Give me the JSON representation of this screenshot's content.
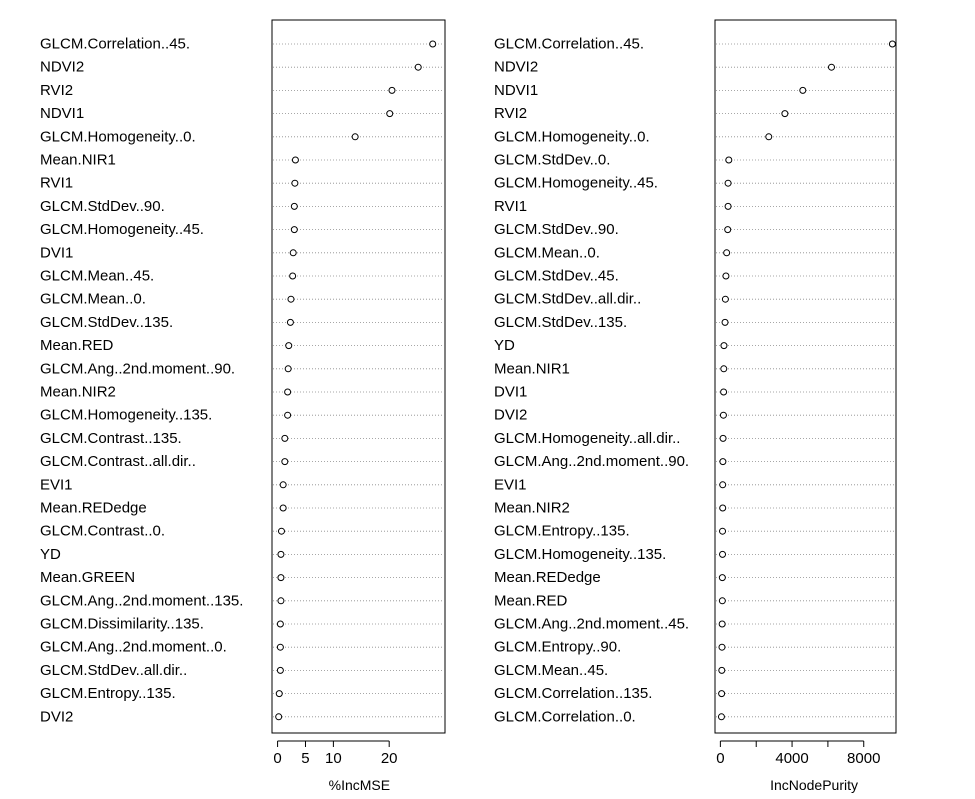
{
  "chart_data": [
    {
      "type": "scatter",
      "subtype": "dotchart",
      "title": "",
      "xlabel": "%IncMSE",
      "ylabel": "",
      "xlim": [
        -1,
        30
      ],
      "xticks": [
        0,
        5,
        10,
        20
      ],
      "grid": "dotted horizontal guide per variable",
      "series": [
        {
          "categories": [
            "GLCM.Correlation..45.",
            "NDVI2",
            "RVI2",
            "NDVI1",
            "GLCM.Homogeneity..0.",
            "Mean.NIR1",
            "RVI1",
            "GLCM.StdDev..90.",
            "GLCM.Homogeneity..45.",
            "DVI1",
            "GLCM.Mean..45.",
            "GLCM.Mean..0.",
            "GLCM.StdDev..135.",
            "Mean.RED",
            "GLCM.Ang..2nd.moment..90.",
            "Mean.NIR2",
            "GLCM.Homogeneity..135.",
            "GLCM.Contrast..135.",
            "GLCM.Contrast..all.dir..",
            "EVI1",
            "Mean.REDedge",
            "GLCM.Contrast..0.",
            "YD",
            "Mean.GREEN",
            "GLCM.Ang..2nd.moment..135.",
            "GLCM.Dissimilarity..135.",
            "GLCM.Ang..2nd.moment..0.",
            "GLCM.StdDev..all.dir..",
            "GLCM.Entropy..135.",
            "DVI2"
          ],
          "values": [
            27.8,
            25.2,
            20.5,
            20.1,
            13.9,
            3.2,
            3.1,
            3.0,
            3.0,
            2.8,
            2.7,
            2.4,
            2.3,
            2.0,
            1.9,
            1.8,
            1.8,
            1.3,
            1.3,
            1.0,
            1.0,
            0.7,
            0.6,
            0.6,
            0.6,
            0.5,
            0.5,
            0.5,
            0.3,
            0.2
          ]
        }
      ]
    },
    {
      "type": "scatter",
      "subtype": "dotchart",
      "title": "",
      "xlabel": "IncNodePurity",
      "ylabel": "",
      "xlim": [
        -300,
        9800
      ],
      "xticks": [
        0,
        4000,
        8000
      ],
      "xtick_minor": [
        2000,
        6000
      ],
      "grid": "dotted horizontal guide per variable",
      "series": [
        {
          "categories": [
            "GLCM.Correlation..45.",
            "NDVI2",
            "NDVI1",
            "RVI2",
            "GLCM.Homogeneity..0.",
            "GLCM.StdDev..0.",
            "GLCM.Homogeneity..45.",
            "RVI1",
            "GLCM.StdDev..90.",
            "GLCM.Mean..0.",
            "GLCM.StdDev..45.",
            "GLCM.StdDev..all.dir..",
            "GLCM.StdDev..135.",
            "YD",
            "Mean.NIR1",
            "DVI1",
            "DVI2",
            "GLCM.Homogeneity..all.dir..",
            "GLCM.Ang..2nd.moment..90.",
            "EVI1",
            "Mean.NIR2",
            "GLCM.Entropy..135.",
            "GLCM.Homogeneity..135.",
            "Mean.REDedge",
            "Mean.RED",
            "GLCM.Ang..2nd.moment..45.",
            "GLCM.Entropy..90.",
            "GLCM.Mean..45.",
            "GLCM.Correlation..135.",
            "GLCM.Correlation..0."
          ],
          "values": [
            9600,
            6200,
            4600,
            3600,
            2700,
            470,
            430,
            430,
            410,
            350,
            310,
            280,
            260,
            200,
            190,
            180,
            170,
            150,
            140,
            130,
            130,
            120,
            120,
            110,
            110,
            100,
            90,
            80,
            70,
            60
          ]
        }
      ]
    }
  ]
}
